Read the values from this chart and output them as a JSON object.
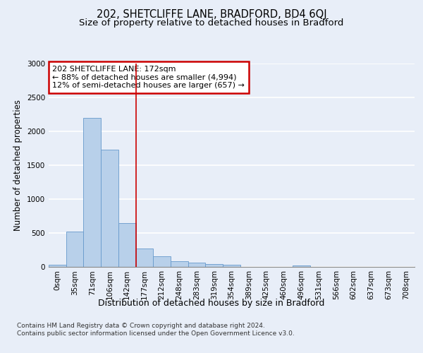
{
  "title1": "202, SHETCLIFFE LANE, BRADFORD, BD4 6QJ",
  "title2": "Size of property relative to detached houses in Bradford",
  "xlabel": "Distribution of detached houses by size in Bradford",
  "ylabel": "Number of detached properties",
  "footnote": "Contains HM Land Registry data © Crown copyright and database right 2024.\nContains public sector information licensed under the Open Government Licence v3.0.",
  "bar_labels": [
    "0sqm",
    "35sqm",
    "71sqm",
    "106sqm",
    "142sqm",
    "177sqm",
    "212sqm",
    "248sqm",
    "283sqm",
    "319sqm",
    "354sqm",
    "389sqm",
    "425sqm",
    "460sqm",
    "496sqm",
    "531sqm",
    "566sqm",
    "602sqm",
    "637sqm",
    "673sqm",
    "708sqm"
  ],
  "bar_values": [
    30,
    520,
    2200,
    1730,
    640,
    270,
    150,
    80,
    55,
    35,
    30,
    0,
    0,
    0,
    15,
    0,
    0,
    0,
    0,
    0,
    0
  ],
  "bar_color": "#b8d0ea",
  "bar_edgecolor": "#6699cc",
  "vline_x": 5.0,
  "vline_color": "#cc0000",
  "annotation_text": "202 SHETCLIFFE LANE: 172sqm\n← 88% of detached houses are smaller (4,994)\n12% of semi-detached houses are larger (657) →",
  "annotation_box_color": "white",
  "annotation_box_edgecolor": "#cc0000",
  "ylim": [
    0,
    3000
  ],
  "yticks": [
    0,
    500,
    1000,
    1500,
    2000,
    2500,
    3000
  ],
  "background_color": "#e8eef8",
  "plot_background": "#e8eef8",
  "grid_color": "white",
  "title1_fontsize": 10.5,
  "title2_fontsize": 9.5,
  "xlabel_fontsize": 9,
  "ylabel_fontsize": 8.5,
  "tick_fontsize": 7.5,
  "annotation_fontsize": 8,
  "footnote_fontsize": 6.5
}
